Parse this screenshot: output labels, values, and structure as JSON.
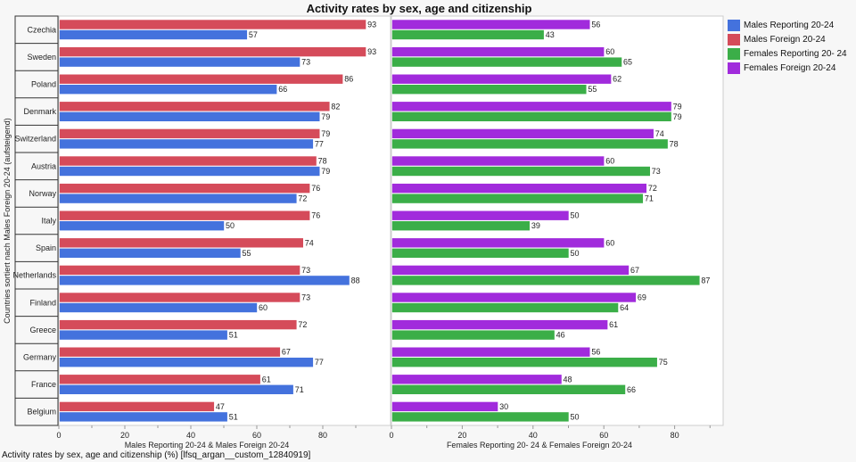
{
  "chart_data": [
    {
      "type": "bar",
      "orientation": "horizontal",
      "title": "Activity rates by sex, age and citizenship",
      "ylabel": "Countries sortiert nach Males Foreign 20-24 (aufsteigend)",
      "xlabel": "Males  Reporting 20-24 & Males Foreign 20-24",
      "xlim": [
        0,
        100
      ],
      "xticks": [
        "0",
        "20",
        "40",
        "60",
        "80"
      ],
      "categories": [
        "Czechia",
        "Sweden",
        "Poland",
        "Denmark",
        "Switzerland",
        "Austria",
        "Norway",
        "Italy",
        "Spain",
        "Netherlands",
        "Finland",
        "Greece",
        "Germany",
        "France",
        "Belgium"
      ],
      "series": [
        {
          "name": "Males Foreign 20-24",
          "color": "#d54b5a",
          "values": [
            93,
            93,
            86,
            82,
            79,
            78,
            76,
            76,
            74,
            73,
            73,
            72,
            67,
            61,
            47
          ]
        },
        {
          "name": "Males  Reporting 20-24",
          "color": "#4472dd",
          "values": [
            57,
            73,
            66,
            79,
            77,
            79,
            72,
            50,
            55,
            88,
            60,
            51,
            77,
            71,
            51
          ]
        }
      ]
    },
    {
      "type": "bar",
      "orientation": "horizontal",
      "xlabel": "Females Reporting 20- 24 & Females Foreign 20-24",
      "xlim": [
        0,
        90
      ],
      "xticks": [
        "0",
        "20",
        "40",
        "60",
        "80"
      ],
      "categories": [
        "Czechia",
        "Sweden",
        "Poland",
        "Denmark",
        "Switzerland",
        "Austria",
        "Norway",
        "Italy",
        "Spain",
        "Netherlands",
        "Finland",
        "Greece",
        "Germany",
        "France",
        "Belgium"
      ],
      "series": [
        {
          "name": "Females Foreign 20-24",
          "color": "#a12bdc",
          "values": [
            56,
            60,
            62,
            79,
            74,
            60,
            72,
            50,
            60,
            67,
            69,
            61,
            56,
            48,
            30
          ]
        },
        {
          "name": "Females Reporting 20- 24",
          "color": "#3bae48",
          "values": [
            43,
            65,
            55,
            79,
            78,
            73,
            71,
            39,
            50,
            87,
            64,
            46,
            75,
            66,
            50
          ]
        }
      ]
    }
  ],
  "header": {
    "title": "Activity rates by sex, age and citizenship"
  },
  "legend": [
    {
      "label": "Males  Reporting 20-24",
      "color": "#4472dd"
    },
    {
      "label": "Males Foreign 20-24",
      "color": "#d54b5a"
    },
    {
      "label": "Females Reporting 20- 24",
      "color": "#3bae48"
    },
    {
      "label": "Females Foreign 20-24",
      "color": "#a12bdc"
    }
  ],
  "footer": {
    "caption": "Activity rates by sex, age and citizenship (%) [lfsq_argan__custom_12840919]"
  }
}
